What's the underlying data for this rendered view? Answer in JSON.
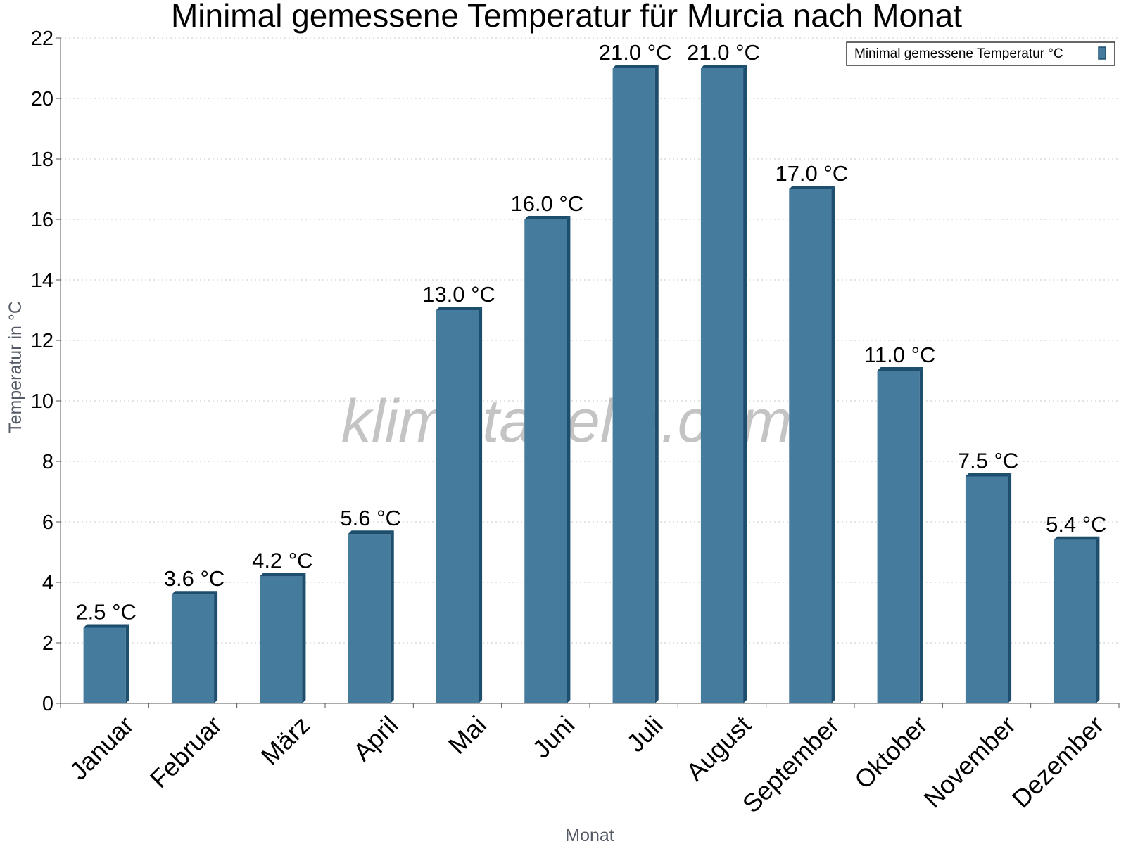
{
  "watermark": "klimatabelle.com",
  "colors": {
    "bar": "#457b9d",
    "bar_side": "#1d4e6e",
    "grid": "#c8c8c8",
    "axis": "#555555"
  },
  "chart_data": {
    "type": "bar",
    "title": "Minimal gemessene Temperatur für Murcia nach Monat",
    "xlabel": "Monat",
    "ylabel": "Temperatur in °C",
    "ylim": [
      0,
      22
    ],
    "yticks": [
      0,
      2,
      4,
      6,
      8,
      10,
      12,
      14,
      16,
      18,
      20,
      22
    ],
    "grid": true,
    "legend_position": "top-right",
    "categories": [
      "Januar",
      "Februar",
      "März",
      "April",
      "Mai",
      "Juni",
      "Juli",
      "August",
      "September",
      "Oktober",
      "November",
      "Dezember"
    ],
    "series": [
      {
        "name": "Minimal gemessene Temperatur °C",
        "values": [
          2.5,
          3.6,
          4.2,
          5.6,
          13.0,
          16.0,
          21.0,
          21.0,
          17.0,
          11.0,
          7.5,
          5.4
        ],
        "labels": [
          "2.5 °C",
          "3.6 °C",
          "4.2 °C",
          "5.6 °C",
          "13.0 °C",
          "16.0 °C",
          "21.0 °C",
          "21.0 °C",
          "17.0 °C",
          "11.0 °C",
          "7.5 °C",
          "5.4 °C"
        ]
      }
    ]
  }
}
